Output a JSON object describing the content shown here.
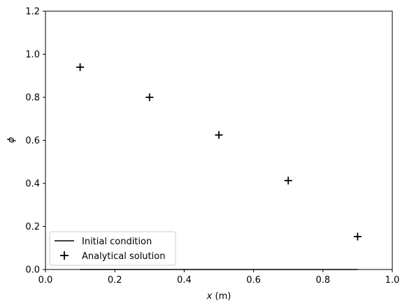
{
  "chart_data": {
    "type": "scatter",
    "xlabel": {
      "var": "x",
      "unit": " (m)"
    },
    "ylabel": "ϕ",
    "xlim": [
      0.0,
      1.0
    ],
    "ylim": [
      0.0,
      1.2
    ],
    "xticks": [
      "0.0",
      "0.2",
      "0.4",
      "0.6",
      "0.8",
      "1.0"
    ],
    "yticks": [
      "0.0",
      "0.2",
      "0.4",
      "0.6",
      "0.8",
      "1.0",
      "1.2"
    ],
    "grid": false,
    "legend_position": "lower-left",
    "series": [
      {
        "name": "Initial condition",
        "type": "line",
        "color": "#000000",
        "x": [
          0.1,
          0.9
        ],
        "y": [
          0.0,
          0.0
        ]
      },
      {
        "name": "Analytical solution",
        "type": "scatter",
        "marker": "plus",
        "color": "#000000",
        "x": [
          0.1,
          0.3,
          0.5,
          0.7,
          0.9
        ],
        "y": [
          0.94,
          0.8,
          0.625,
          0.413,
          0.153
        ]
      }
    ]
  }
}
